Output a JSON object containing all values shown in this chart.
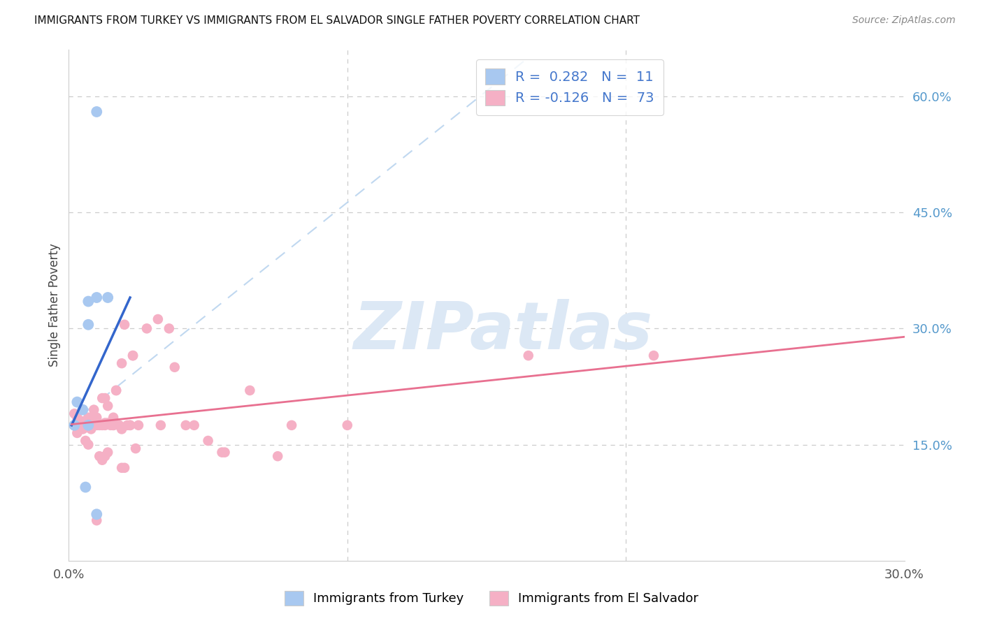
{
  "title": "IMMIGRANTS FROM TURKEY VS IMMIGRANTS FROM EL SALVADOR SINGLE FATHER POVERTY CORRELATION CHART",
  "source": "Source: ZipAtlas.com",
  "ylabel": "Single Father Poverty",
  "ylabel_right_labels": [
    "15.0%",
    "30.0%",
    "45.0%",
    "60.0%"
  ],
  "ylabel_right_values": [
    0.15,
    0.3,
    0.45,
    0.6
  ],
  "xlim": [
    0.0,
    0.3
  ],
  "ylim": [
    0.0,
    0.66
  ],
  "legend_turkey_R": "0.282",
  "legend_turkey_N": "11",
  "legend_salvador_R": "-0.126",
  "legend_salvador_N": "73",
  "turkey_color": "#a8c8f0",
  "salvador_color": "#f5b0c5",
  "turkey_line_color": "#3366cc",
  "salvador_line_color": "#e87090",
  "dashed_line_color": "#c0d8f0",
  "turkey_points": [
    [
      0.003,
      0.205
    ],
    [
      0.005,
      0.195
    ],
    [
      0.007,
      0.335
    ],
    [
      0.007,
      0.305
    ],
    [
      0.01,
      0.34
    ],
    [
      0.007,
      0.175
    ],
    [
      0.014,
      0.34
    ],
    [
      0.006,
      0.095
    ],
    [
      0.01,
      0.06
    ],
    [
      0.002,
      0.175
    ],
    [
      0.01,
      0.58
    ]
  ],
  "salvador_points": [
    [
      0.002,
      0.19
    ],
    [
      0.003,
      0.185
    ],
    [
      0.003,
      0.175
    ],
    [
      0.003,
      0.165
    ],
    [
      0.004,
      0.18
    ],
    [
      0.004,
      0.175
    ],
    [
      0.005,
      0.18
    ],
    [
      0.005,
      0.175
    ],
    [
      0.005,
      0.17
    ],
    [
      0.006,
      0.155
    ],
    [
      0.006,
      0.175
    ],
    [
      0.006,
      0.172
    ],
    [
      0.007,
      0.15
    ],
    [
      0.007,
      0.185
    ],
    [
      0.007,
      0.175
    ],
    [
      0.008,
      0.175
    ],
    [
      0.008,
      0.18
    ],
    [
      0.008,
      0.17
    ],
    [
      0.009,
      0.195
    ],
    [
      0.009,
      0.175
    ],
    [
      0.009,
      0.185
    ],
    [
      0.01,
      0.185
    ],
    [
      0.01,
      0.178
    ],
    [
      0.01,
      0.175
    ],
    [
      0.011,
      0.175
    ],
    [
      0.011,
      0.135
    ],
    [
      0.012,
      0.13
    ],
    [
      0.012,
      0.175
    ],
    [
      0.012,
      0.21
    ],
    [
      0.013,
      0.21
    ],
    [
      0.013,
      0.175
    ],
    [
      0.013,
      0.178
    ],
    [
      0.013,
      0.135
    ],
    [
      0.014,
      0.14
    ],
    [
      0.014,
      0.2
    ],
    [
      0.014,
      0.178
    ],
    [
      0.015,
      0.175
    ],
    [
      0.016,
      0.185
    ],
    [
      0.016,
      0.175
    ],
    [
      0.016,
      0.175
    ],
    [
      0.017,
      0.22
    ],
    [
      0.017,
      0.22
    ],
    [
      0.018,
      0.175
    ],
    [
      0.018,
      0.175
    ],
    [
      0.019,
      0.255
    ],
    [
      0.019,
      0.17
    ],
    [
      0.019,
      0.12
    ],
    [
      0.02,
      0.305
    ],
    [
      0.02,
      0.12
    ],
    [
      0.021,
      0.175
    ],
    [
      0.022,
      0.175
    ],
    [
      0.022,
      0.175
    ],
    [
      0.023,
      0.265
    ],
    [
      0.023,
      0.265
    ],
    [
      0.024,
      0.145
    ],
    [
      0.025,
      0.175
    ],
    [
      0.028,
      0.3
    ],
    [
      0.032,
      0.312
    ],
    [
      0.033,
      0.175
    ],
    [
      0.036,
      0.3
    ],
    [
      0.038,
      0.25
    ],
    [
      0.042,
      0.175
    ],
    [
      0.045,
      0.175
    ],
    [
      0.05,
      0.155
    ],
    [
      0.055,
      0.14
    ],
    [
      0.056,
      0.14
    ],
    [
      0.065,
      0.22
    ],
    [
      0.075,
      0.135
    ],
    [
      0.08,
      0.175
    ],
    [
      0.01,
      0.052
    ],
    [
      0.1,
      0.175
    ],
    [
      0.165,
      0.265
    ],
    [
      0.21,
      0.265
    ]
  ],
  "watermark": "ZIPatlas",
  "watermark_color": "#dce8f5"
}
